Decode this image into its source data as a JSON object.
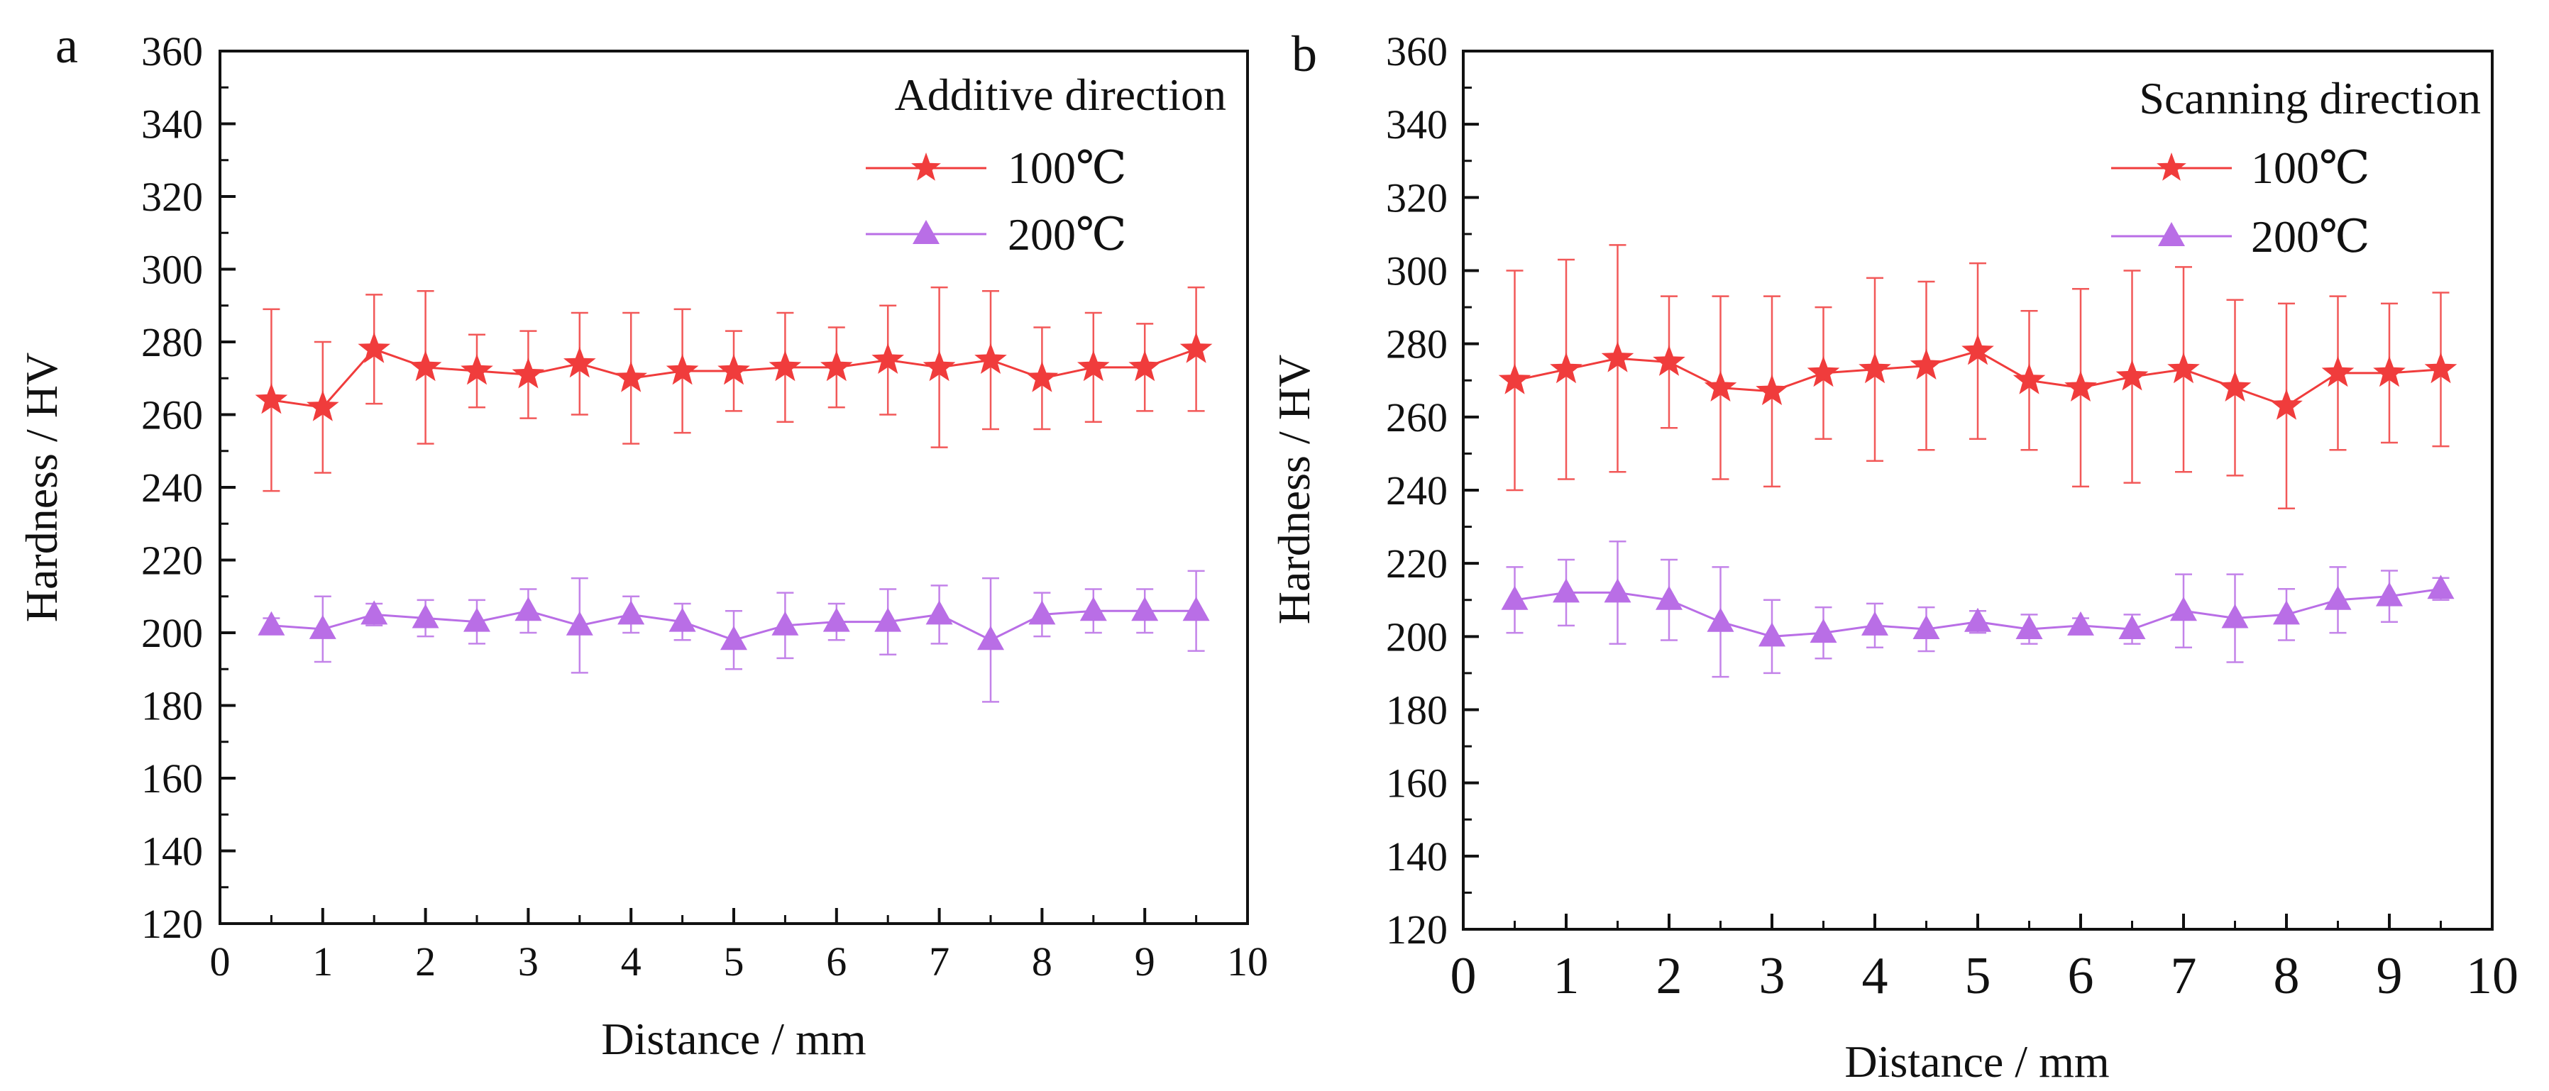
{
  "chart_data": [
    {
      "panel": "a",
      "type": "line",
      "title": "Additive direction",
      "xlabel": "Distance / mm",
      "ylabel": "Hardness / HV",
      "xlim": [
        0,
        10
      ],
      "ylim": [
        120,
        360
      ],
      "xticks": [
        0,
        1,
        2,
        3,
        4,
        5,
        6,
        7,
        8,
        9,
        10
      ],
      "yticks": [
        120,
        140,
        160,
        180,
        200,
        220,
        240,
        260,
        280,
        300,
        320,
        340,
        360
      ],
      "legend_position": "top-right",
      "x": [
        0.5,
        1,
        1.5,
        2,
        2.5,
        3,
        3.5,
        4,
        4.5,
        5,
        5.5,
        6,
        6.5,
        7,
        7.5,
        8,
        8.5,
        9,
        9.5
      ],
      "series": [
        {
          "name": "100℃",
          "color": "#f03c3c",
          "marker": "star",
          "values": [
            264,
            262,
            278,
            273,
            272,
            271,
            274,
            270,
            272,
            272,
            273,
            273,
            275,
            273,
            275,
            270,
            273,
            273,
            278
          ],
          "errors": [
            25,
            18,
            15,
            21,
            10,
            12,
            14,
            18,
            17,
            11,
            15,
            11,
            15,
            22,
            19,
            14,
            15,
            12,
            17
          ]
        },
        {
          "name": "200℃",
          "color": "#b96ee6",
          "marker": "triangle",
          "values": [
            202,
            201,
            205,
            204,
            203,
            206,
            202,
            205,
            203,
            198,
            202,
            203,
            203,
            205,
            198,
            205,
            206,
            206,
            206
          ],
          "errors": [
            2,
            9,
            3,
            5,
            6,
            6,
            13,
            5,
            5,
            8,
            9,
            5,
            9,
            8,
            17,
            6,
            6,
            6,
            11
          ]
        }
      ]
    },
    {
      "panel": "b",
      "type": "line",
      "title": "Scanning direction",
      "xlabel": "Distance / mm",
      "ylabel": "Hardness / HV",
      "xlim": [
        0,
        10
      ],
      "ylim": [
        120,
        360
      ],
      "xticks": [
        0,
        1,
        2,
        3,
        4,
        5,
        6,
        7,
        8,
        9,
        10
      ],
      "yticks": [
        120,
        140,
        160,
        180,
        200,
        220,
        240,
        260,
        280,
        300,
        320,
        340,
        360
      ],
      "legend_position": "top-right",
      "x": [
        0.5,
        1,
        1.5,
        2,
        2.5,
        3,
        3.5,
        4,
        4.5,
        5,
        5.5,
        6,
        6.5,
        7,
        7.5,
        8,
        8.5,
        9,
        9.5
      ],
      "series": [
        {
          "name": "100℃",
          "color": "#f03c3c",
          "marker": "star",
          "values": [
            270,
            273,
            276,
            275,
            268,
            267,
            272,
            273,
            274,
            278,
            270,
            268,
            271,
            273,
            268,
            263,
            272,
            272,
            273
          ],
          "errors": [
            30,
            30,
            31,
            18,
            25,
            26,
            18,
            25,
            23,
            24,
            19,
            27,
            29,
            28,
            24,
            28,
            21,
            19,
            21
          ]
        },
        {
          "name": "200℃",
          "color": "#b96ee6",
          "marker": "triangle",
          "values": [
            210,
            212,
            212,
            210,
            204,
            200,
            201,
            203,
            202,
            204,
            202,
            203,
            202,
            207,
            205,
            206,
            210,
            211,
            213
          ],
          "errors": [
            9,
            9,
            14,
            11,
            15,
            10,
            7,
            6,
            6,
            3,
            4,
            2,
            4,
            10,
            12,
            7,
            9,
            7,
            3
          ]
        }
      ]
    }
  ]
}
